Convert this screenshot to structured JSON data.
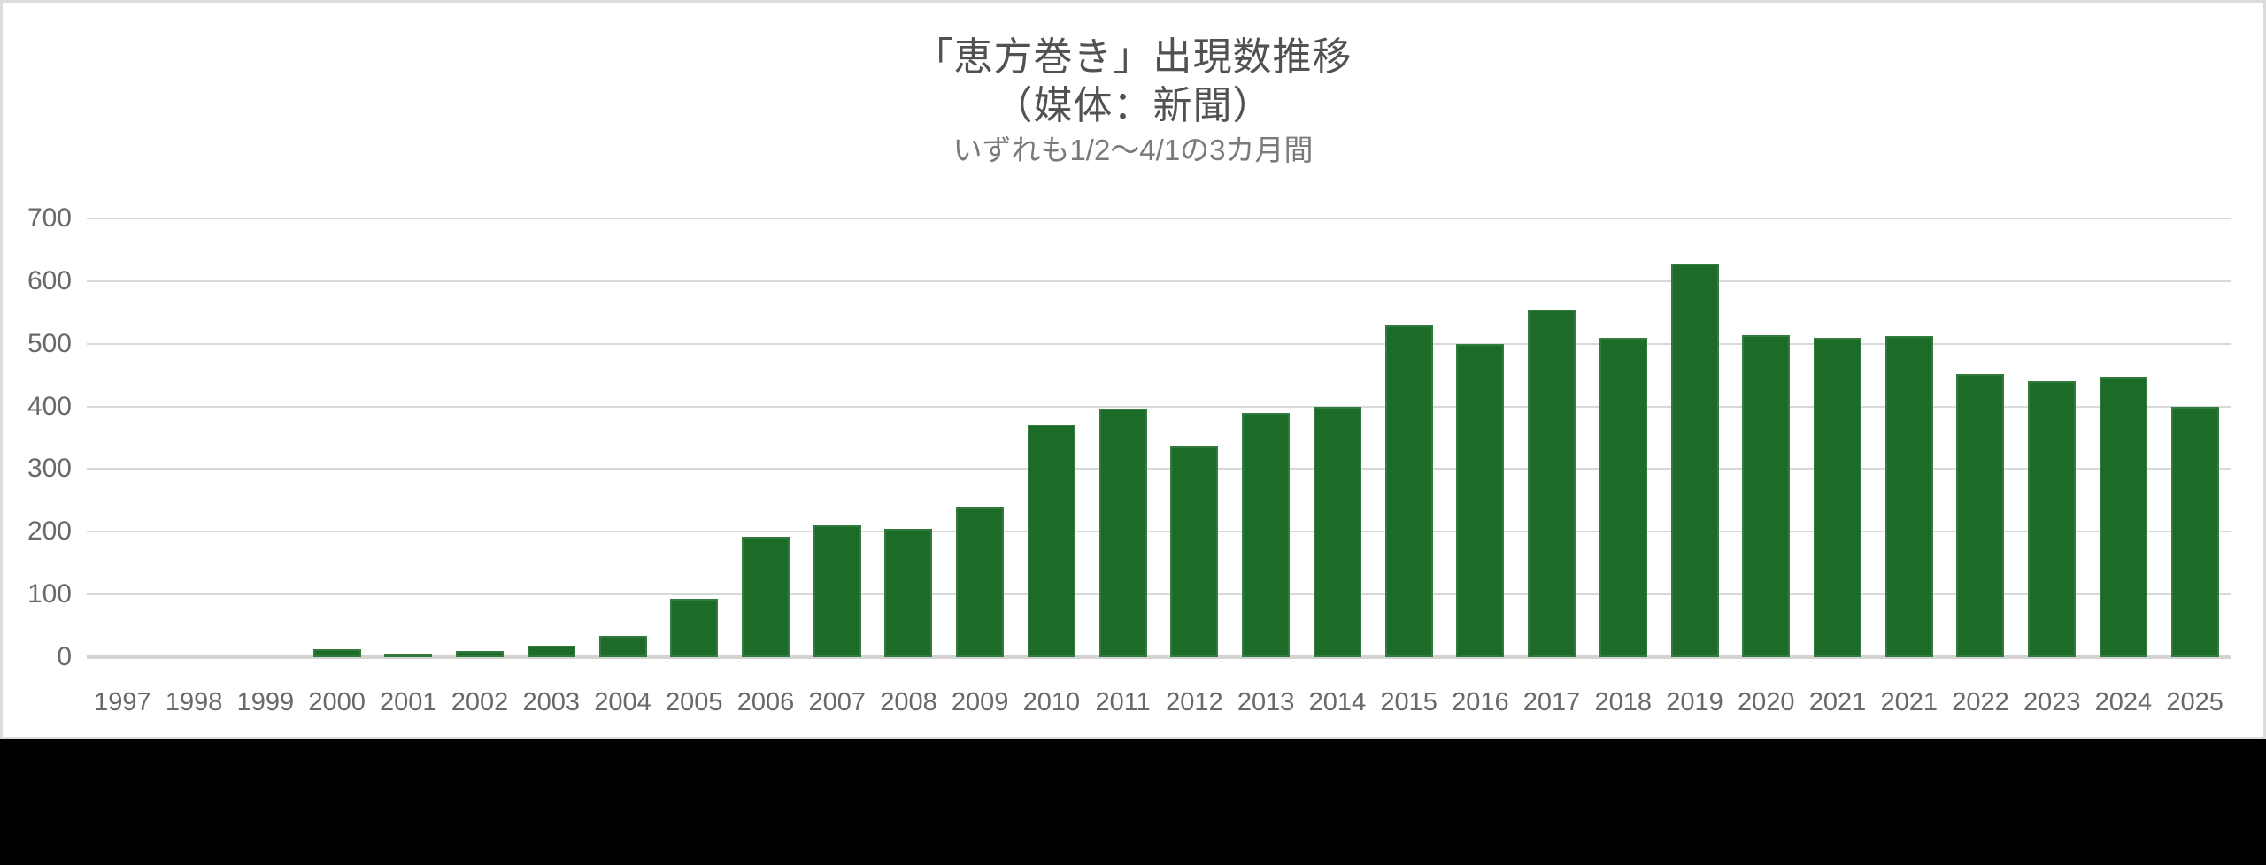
{
  "page": {
    "background": "#000000"
  },
  "card": {
    "background": "#ffffff",
    "border_color": "#dcdcdc"
  },
  "chart": {
    "title_line1": "「恵方巻き」出現数推移",
    "title_line2": "（媒体：新聞）",
    "subtitle": "いずれも1/2～4/1の3カ月間"
  },
  "chart_data": {
    "type": "bar",
    "title": "「恵方巻き」出現数推移（媒体：新聞）",
    "subtitle": "いずれも1/2～4/1の3カ月間",
    "categories": [
      "1997",
      "1998",
      "1999",
      "2000",
      "2001",
      "2002",
      "2003",
      "2004",
      "2005",
      "2006",
      "2007",
      "2008",
      "2009",
      "2010",
      "2011",
      "2012",
      "2013",
      "2014",
      "2015",
      "2016",
      "2017",
      "2018",
      "2019",
      "2020",
      "2021",
      "2021",
      "2022",
      "2023",
      "2024",
      "2025"
    ],
    "values": [
      0,
      0,
      0,
      13,
      5,
      10,
      19,
      34,
      93,
      192,
      210,
      204,
      240,
      371,
      397,
      337,
      389,
      400,
      529,
      500,
      555,
      509,
      628,
      514,
      510,
      512,
      451,
      441,
      448,
      400
    ],
    "ylim": [
      0,
      700
    ],
    "yticks": [
      0,
      100,
      200,
      300,
      400,
      500,
      600,
      700
    ],
    "grid": "horizontal",
    "legend": "none",
    "bar_color": "#1c6b28",
    "gridline_color": "#d9d9d9",
    "baseline_color": "#d3d3d3",
    "axis_text_color": "#696969",
    "title_color": "#515151",
    "subtitle_color": "#7a7a7a"
  }
}
